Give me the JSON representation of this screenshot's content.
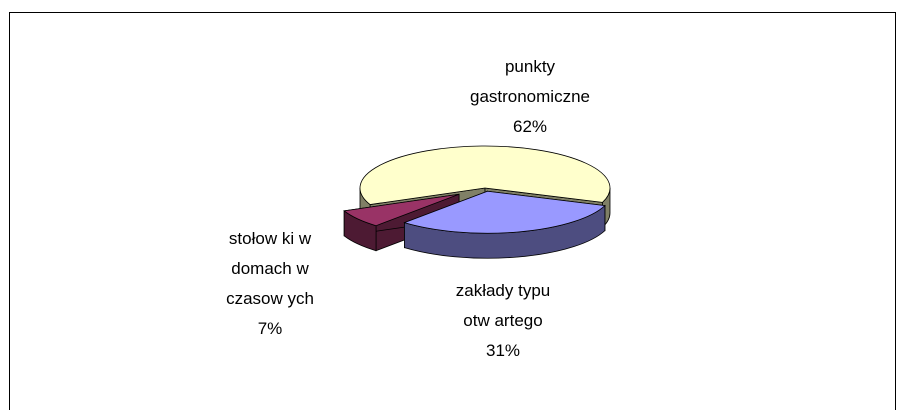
{
  "chart_data": {
    "type": "pie",
    "categories": [
      "punkty gastronomiczne",
      "zakłady typu otw artego",
      "stołow ki w domach w czasow ych"
    ],
    "values": [
      62,
      31,
      7
    ],
    "value_labels": [
      "62%",
      "31%",
      "7%"
    ],
    "colors": [
      "#ffffcc",
      "#9999ff",
      "#993366"
    ],
    "side_colors": [
      "#808066",
      "#4d4d80",
      "#4d1a33"
    ]
  }
}
